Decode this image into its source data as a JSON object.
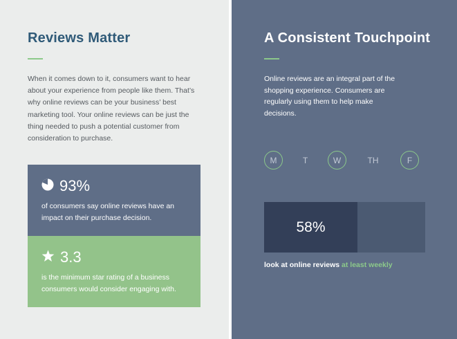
{
  "left": {
    "title": "Reviews Matter",
    "body": "When it comes down to it, consumers want to hear about your experience from people like them. That’s why online reviews can be your business’ best marketing tool. Your online reviews can be just the thing needed to push a potential customer from consideration to purchase.",
    "stats": [
      {
        "icon": "pie-chart-icon",
        "value": "93%",
        "description": "of consumers say online reviews have an impact on their purchase decision."
      },
      {
        "icon": "star-icon",
        "value": "3.3",
        "description": "is the minimum star rating of a business consumers would consider engaging with."
      }
    ]
  },
  "right": {
    "title": "A Consistent Touchpoint",
    "body": "Online reviews are an integral part of the shopping experience. Consumers are regularly using them to help make decisions.",
    "days": [
      {
        "label": "M",
        "active": true
      },
      {
        "label": "T",
        "active": false
      },
      {
        "label": "W",
        "active": true
      },
      {
        "label": "TH",
        "active": false
      },
      {
        "label": "F",
        "active": true
      }
    ],
    "bar": {
      "value_label": "58%",
      "fraction": 0.58
    },
    "caption_main": "look at online reviews",
    "caption_highlight": "at least weekly"
  },
  "colors": {
    "left_background": "#ebedec",
    "right_background": "#5f6e87",
    "title_blue": "#2f5a78",
    "accent_green": "#8cc98a",
    "card_blue": "#5f6e87",
    "card_green": "#93c38a",
    "bar_fill": "#333f58",
    "bar_track": "#4b5a72"
  }
}
